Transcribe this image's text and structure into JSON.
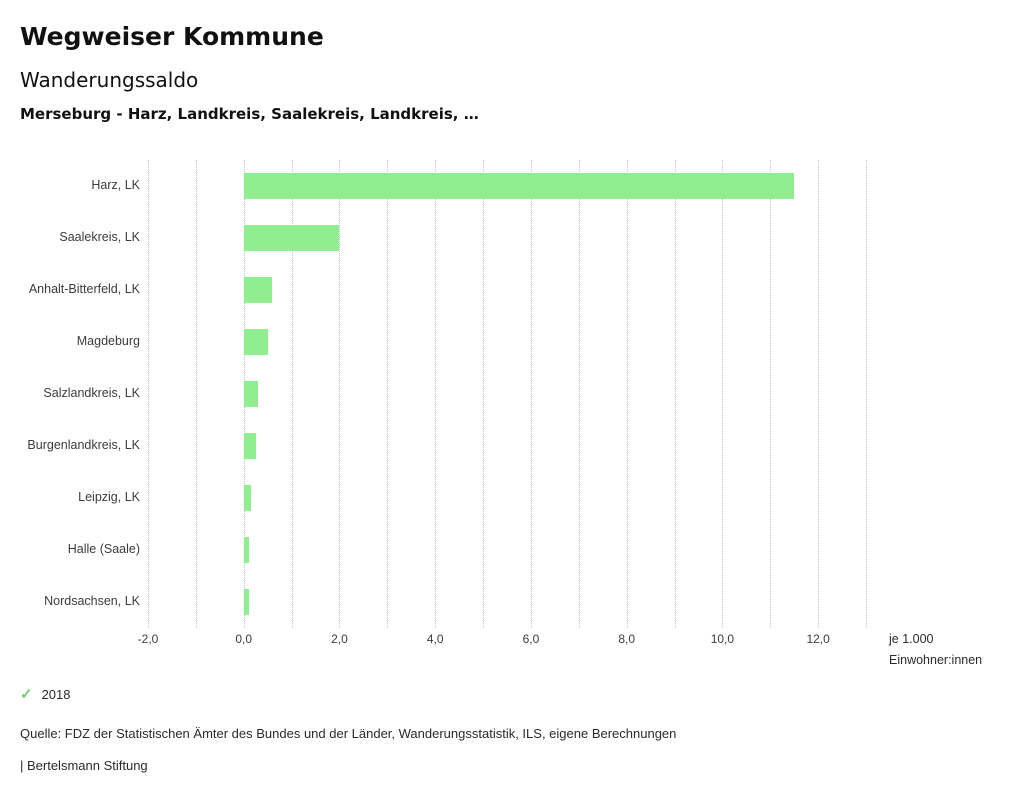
{
  "header": {
    "title": "Wegweiser Kommune",
    "subtitle": "Wanderungssaldo",
    "selection": "Merseburg - Harz, Landkreis, Saalekreis, Landkreis, …"
  },
  "chart_data": {
    "type": "bar",
    "orientation": "horizontal",
    "title": "Wanderungssaldo",
    "categories": [
      "Harz, LK",
      "Saalekreis, LK",
      "Anhalt-Bitterfeld, LK",
      "Magdeburg",
      "Salzlandkreis, LK",
      "Burgenlandkreis, LK",
      "Leipzig, LK",
      "Halle (Saale)",
      "Nordsachsen, LK"
    ],
    "values": [
      11.5,
      2.0,
      0.6,
      0.5,
      0.3,
      0.25,
      0.15,
      0.12,
      0.12
    ],
    "xlim": [
      -2,
      13
    ],
    "x_tick_values": [
      -2,
      0,
      2,
      4,
      6,
      8,
      10,
      12
    ],
    "x_tick_labels": [
      "-2,0",
      "0,0",
      "2,0",
      "4,0",
      "6,0",
      "8,0",
      "10,0",
      "12,0"
    ],
    "grid": "dotted-vertical",
    "bar_color": "#90ee90",
    "unit_label_line1": "je 1.000",
    "unit_label_line2": "Einwohner:innen",
    "legend": {
      "label": "2018",
      "marker": "check",
      "marker_color": "#6fcf7a"
    }
  },
  "footer": {
    "source": "Quelle: FDZ der Statistischen Ämter des Bundes und der Länder, Wanderungsstatistik, ILS, eigene Berechnungen",
    "brand": "| Bertelsmann Stiftung"
  }
}
